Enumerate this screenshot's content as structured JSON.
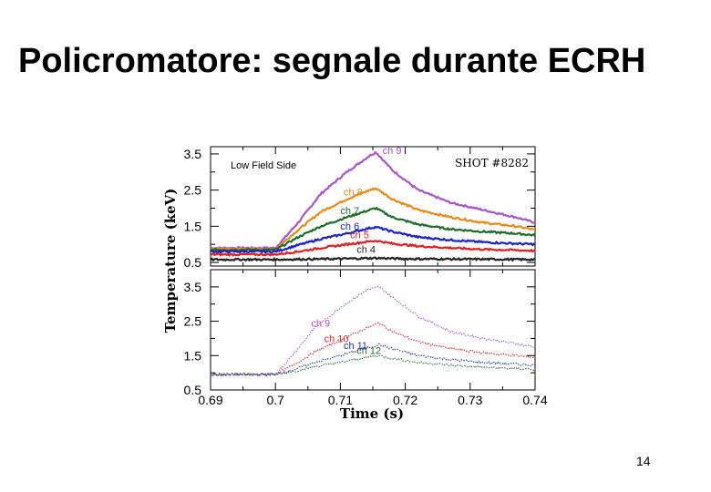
{
  "slide": {
    "title": "Policromatore: segnale durante ECRH",
    "page_number": "14"
  },
  "colors": {
    "ch9": "#a855c8",
    "ch8": "#e88a1a",
    "ch7": "#1f6b2a",
    "ch6": "#1a22c8",
    "ch5": "#e02020",
    "ch4": "#222222",
    "ch10": "#d42a2a",
    "ch11": "#2233aa",
    "ch12": "#2d6a40"
  },
  "chart_data": [
    {
      "type": "line",
      "panel": "top",
      "xlabel": "Time   (s)",
      "ylabel": "Temperature   (keV)",
      "annotation": "Low Field Side",
      "shot_label": "SHOT #8282",
      "xlim": [
        0.69,
        0.74
      ],
      "ylim": [
        0.4,
        3.7
      ],
      "y_ticks": [
        "3.5",
        "2.5",
        "1.5",
        "0.5"
      ],
      "y_tick_values": [
        3.5,
        2.5,
        1.5,
        0.5
      ],
      "series": [
        {
          "name": "ch 9",
          "color_key": "ch9",
          "x": [
            0.69,
            0.6985,
            0.7,
            0.7035,
            0.707,
            0.711,
            0.7145,
            0.7155,
            0.718,
            0.722,
            0.727,
            0.732,
            0.737,
            0.74
          ],
          "y": [
            0.9,
            0.9,
            0.9,
            1.6,
            2.4,
            3.0,
            3.45,
            3.55,
            3.05,
            2.5,
            2.15,
            1.95,
            1.75,
            1.6
          ]
        },
        {
          "name": "ch 8",
          "color_key": "ch8",
          "x": [
            0.69,
            0.6985,
            0.7,
            0.7035,
            0.707,
            0.711,
            0.7145,
            0.7155,
            0.718,
            0.722,
            0.727,
            0.732,
            0.737,
            0.74
          ],
          "y": [
            0.87,
            0.87,
            0.87,
            1.4,
            1.9,
            2.25,
            2.5,
            2.55,
            2.25,
            1.95,
            1.75,
            1.6,
            1.5,
            1.4
          ]
        },
        {
          "name": "ch 7",
          "color_key": "ch7",
          "x": [
            0.69,
            0.6985,
            0.7,
            0.7035,
            0.707,
            0.711,
            0.7145,
            0.7155,
            0.718,
            0.722,
            0.727,
            0.732,
            0.737,
            0.74
          ],
          "y": [
            0.85,
            0.85,
            0.85,
            1.2,
            1.5,
            1.75,
            1.95,
            2.0,
            1.75,
            1.55,
            1.42,
            1.35,
            1.3,
            1.25
          ]
        },
        {
          "name": "ch 6",
          "color_key": "ch6",
          "x": [
            0.69,
            0.6985,
            0.7,
            0.7035,
            0.707,
            0.711,
            0.7145,
            0.7155,
            0.718,
            0.722,
            0.727,
            0.732,
            0.737,
            0.74
          ],
          "y": [
            0.8,
            0.8,
            0.8,
            0.98,
            1.15,
            1.3,
            1.45,
            1.48,
            1.35,
            1.2,
            1.12,
            1.06,
            1.02,
            1.0
          ]
        },
        {
          "name": "ch 5",
          "color_key": "ch5",
          "x": [
            0.69,
            0.6985,
            0.7,
            0.7035,
            0.707,
            0.711,
            0.7145,
            0.7155,
            0.718,
            0.722,
            0.727,
            0.732,
            0.737,
            0.74
          ],
          "y": [
            0.72,
            0.72,
            0.72,
            0.8,
            0.9,
            1.0,
            1.08,
            1.1,
            1.02,
            0.95,
            0.9,
            0.86,
            0.84,
            0.82
          ]
        },
        {
          "name": "ch 4",
          "color_key": "ch4",
          "x": [
            0.69,
            0.7,
            0.71,
            0.7155,
            0.72,
            0.73,
            0.74
          ],
          "y": [
            0.58,
            0.58,
            0.6,
            0.62,
            0.6,
            0.59,
            0.58
          ]
        }
      ]
    },
    {
      "type": "line",
      "panel": "bottom",
      "xlabel": "Time   (s)",
      "ylabel": "Temperature   (keV)",
      "xlim": [
        0.69,
        0.74
      ],
      "ylim": [
        0.5,
        4.0
      ],
      "x_ticks": [
        "0.69",
        "0.7",
        "0.71",
        "0.72",
        "0.73",
        "0.74"
      ],
      "x_tick_values": [
        0.69,
        0.7,
        0.71,
        0.72,
        0.73,
        0.74
      ],
      "y_ticks": [
        "3.5",
        "2.5",
        "1.5",
        "0.5"
      ],
      "y_tick_values": [
        3.5,
        2.5,
        1.5,
        0.5
      ],
      "series": [
        {
          "name": "ch 9",
          "color_key": "ch9",
          "x": [
            0.69,
            0.6985,
            0.7,
            0.703,
            0.706,
            0.71,
            0.714,
            0.716,
            0.718,
            0.722,
            0.727,
            0.732,
            0.737,
            0.74
          ],
          "y": [
            0.95,
            0.95,
            0.95,
            1.6,
            2.3,
            2.9,
            3.4,
            3.5,
            3.2,
            2.65,
            2.2,
            2.0,
            1.85,
            1.75
          ]
        },
        {
          "name": "ch 10",
          "color_key": "ch10",
          "x": [
            0.69,
            0.6985,
            0.7,
            0.703,
            0.706,
            0.71,
            0.714,
            0.716,
            0.718,
            0.722,
            0.727,
            0.732,
            0.737,
            0.74
          ],
          "y": [
            0.95,
            0.95,
            0.95,
            1.25,
            1.6,
            1.95,
            2.3,
            2.45,
            2.2,
            1.9,
            1.7,
            1.58,
            1.5,
            1.45
          ]
        },
        {
          "name": "ch 11",
          "color_key": "ch11",
          "x": [
            0.69,
            0.6985,
            0.7,
            0.703,
            0.706,
            0.71,
            0.714,
            0.716,
            0.718,
            0.722,
            0.727,
            0.732,
            0.737,
            0.74
          ],
          "y": [
            0.95,
            0.95,
            0.95,
            1.1,
            1.3,
            1.5,
            1.72,
            1.82,
            1.7,
            1.5,
            1.38,
            1.3,
            1.25,
            1.22
          ]
        },
        {
          "name": "ch 12",
          "color_key": "ch12",
          "x": [
            0.69,
            0.6985,
            0.7,
            0.703,
            0.706,
            0.71,
            0.714,
            0.716,
            0.718,
            0.722,
            0.727,
            0.732,
            0.737,
            0.74
          ],
          "y": [
            0.95,
            0.95,
            0.95,
            1.05,
            1.18,
            1.3,
            1.45,
            1.5,
            1.42,
            1.3,
            1.22,
            1.16,
            1.12,
            1.1
          ]
        }
      ]
    }
  ]
}
